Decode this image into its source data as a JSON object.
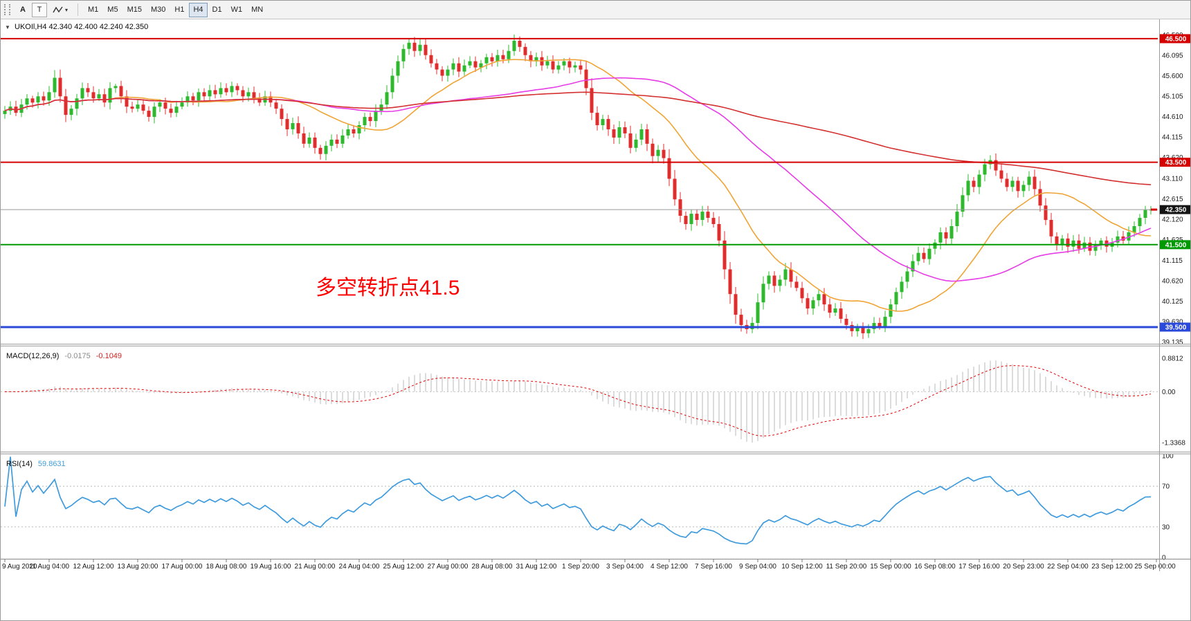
{
  "toolbar": {
    "tools": [
      {
        "label": "A"
      },
      {
        "label": "T"
      }
    ],
    "caret_icon": "▾",
    "timeframes": [
      "M1",
      "M5",
      "M15",
      "M30",
      "H1",
      "H4",
      "D1",
      "W1",
      "MN"
    ],
    "active_timeframe": "H4"
  },
  "chart": {
    "collapse_icon": "▼",
    "symbol_header": "UKOIl,H4  42.340 42.400 42.240 42.350",
    "annotation": "多空转折点41.5",
    "annotation_color": "#ff0000"
  },
  "indicators": {
    "macd": {
      "name": "MACD(12,26,9)",
      "value_main": "-0.0175",
      "value_signal": "-0.1049",
      "params": {
        "fast": 12,
        "slow": 26,
        "signal": 9
      },
      "axis": [
        {
          "label": "0.8812",
          "value": 0.8812
        },
        {
          "label": "0.00",
          "value": 0
        },
        {
          "label": "-1.3368",
          "value": -1.3368
        }
      ]
    },
    "rsi": {
      "name": "RSI(14)",
      "value": "59.8631",
      "period": 14,
      "levels": [
        70,
        30
      ],
      "axis": [
        {
          "label": "100",
          "value": 100
        },
        {
          "label": "70",
          "value": 70
        },
        {
          "label": "30",
          "value": 30
        },
        {
          "label": "0",
          "value": 0
        }
      ]
    }
  },
  "chart_data": {
    "type": "candlestick",
    "symbol": "UKOIl",
    "timeframe": "H4",
    "last_bar_ohlc": {
      "open": 42.34,
      "high": 42.4,
      "low": 42.24,
      "close": 42.35
    },
    "ylim": [
      39.13,
      46.8
    ],
    "price_ticks": [
      "46.590",
      "46.095",
      "45.600",
      "45.105",
      "44.610",
      "44.115",
      "43.620",
      "43.110",
      "42.615",
      "42.120",
      "41.625",
      "41.115",
      "40.620",
      "40.125",
      "39.630",
      "39.135"
    ],
    "bars_per_time_label": 8,
    "time_labels": [
      "9 Aug 2020",
      "11 Aug 04:00",
      "12 Aug 12:00",
      "13 Aug 20:00",
      "17 Aug 00:00",
      "18 Aug 08:00",
      "19 Aug 16:00",
      "21 Aug 00:00",
      "24 Aug 04:00",
      "25 Aug 12:00",
      "27 Aug 00:00",
      "28 Aug 08:00",
      "31 Aug 12:00",
      "1 Sep 20:00",
      "3 Sep 04:00",
      "4 Sep 12:00",
      "7 Sep 16:00",
      "9 Sep 04:00",
      "10 Sep 12:00",
      "11 Sep 20:00",
      "15 Sep 00:00",
      "16 Sep 08:00",
      "17 Sep 16:00",
      "20 Sep 23:00",
      "22 Sep 04:00",
      "23 Sep 12:00",
      "25 Sep 00:00"
    ],
    "closes": [
      44.75,
      44.85,
      44.7,
      44.9,
      45.05,
      44.95,
      45.1,
      45.0,
      45.2,
      45.55,
      45.1,
      44.65,
      44.8,
      45.05,
      45.3,
      45.2,
      45.05,
      45.15,
      44.95,
      45.3,
      45.35,
      45.1,
      44.85,
      44.8,
      44.9,
      44.75,
      44.6,
      44.85,
      44.95,
      44.8,
      44.7,
      44.85,
      44.95,
      45.1,
      45.0,
      45.2,
      45.1,
      45.25,
      45.15,
      45.3,
      45.2,
      45.35,
      45.25,
      45.1,
      45.2,
      45.05,
      44.95,
      45.1,
      44.95,
      44.8,
      44.55,
      44.3,
      44.45,
      44.2,
      43.95,
      44.1,
      43.85,
      43.7,
      43.9,
      44.05,
      43.95,
      44.15,
      44.3,
      44.2,
      44.4,
      44.6,
      44.5,
      44.75,
      44.9,
      45.2,
      45.6,
      45.95,
      46.25,
      46.4,
      46.2,
      46.35,
      46.1,
      45.9,
      45.75,
      45.6,
      45.75,
      45.9,
      45.7,
      45.85,
      45.95,
      45.8,
      45.9,
      46.05,
      45.95,
      46.1,
      46.0,
      46.2,
      46.45,
      46.3,
      46.1,
      45.95,
      46.05,
      45.85,
      45.95,
      45.75,
      45.85,
      45.95,
      45.8,
      45.85,
      45.75,
      45.3,
      44.7,
      44.4,
      44.55,
      44.3,
      44.1,
      44.35,
      44.2,
      43.85,
      44.05,
      44.3,
      43.95,
      43.65,
      43.8,
      43.6,
      43.1,
      42.6,
      42.2,
      42.0,
      42.25,
      42.1,
      42.3,
      42.15,
      42.0,
      41.6,
      40.9,
      40.3,
      39.8,
      39.55,
      39.45,
      39.6,
      40.1,
      40.55,
      40.75,
      40.5,
      40.65,
      40.9,
      40.6,
      40.45,
      40.2,
      39.95,
      40.15,
      40.3,
      40.05,
      39.85,
      39.95,
      39.7,
      39.55,
      39.4,
      39.5,
      39.35,
      39.45,
      39.6,
      39.5,
      39.75,
      40.05,
      40.35,
      40.6,
      40.85,
      41.1,
      41.3,
      41.15,
      41.4,
      41.55,
      41.8,
      41.65,
      41.95,
      42.3,
      42.7,
      43.05,
      42.9,
      43.2,
      43.45,
      43.55,
      43.3,
      43.1,
      42.9,
      43.05,
      42.8,
      42.95,
      43.15,
      42.85,
      42.45,
      42.1,
      41.7,
      41.5,
      41.65,
      41.45,
      41.6,
      41.4,
      41.55,
      41.35,
      41.5,
      41.6,
      41.45,
      41.55,
      41.7,
      41.6,
      41.8,
      41.95,
      42.15,
      42.34,
      42.35
    ],
    "hlines": [
      {
        "value": 46.5,
        "label": "46.500",
        "color": "#d40000",
        "width": 2
      },
      {
        "value": 43.5,
        "label": "43.500",
        "color": "#d40000",
        "width": 2
      },
      {
        "value": 41.5,
        "label": "41.500",
        "color": "#009a00",
        "width": 2
      },
      {
        "value": 39.5,
        "label": "39.500",
        "color": "#2a49d8",
        "width": 3
      }
    ],
    "current_price": {
      "value": 42.35,
      "label": "42.350",
      "line_color": "#999999",
      "box_color": "#141414",
      "marker_color": "#d40000"
    },
    "moving_averages": [
      {
        "name": "fast",
        "period": 20,
        "color": "#f0a435"
      },
      {
        "name": "medium",
        "period": 50,
        "color": "#e63ce6"
      },
      {
        "name": "slow",
        "period": 150,
        "color": "#d43030"
      }
    ],
    "colors": {
      "up": "#2db82d",
      "down": "#e02c2c",
      "macd_hist": "#b8b8b8",
      "macd_signal": "#e00000",
      "rsi": "#3f9bdc"
    }
  }
}
